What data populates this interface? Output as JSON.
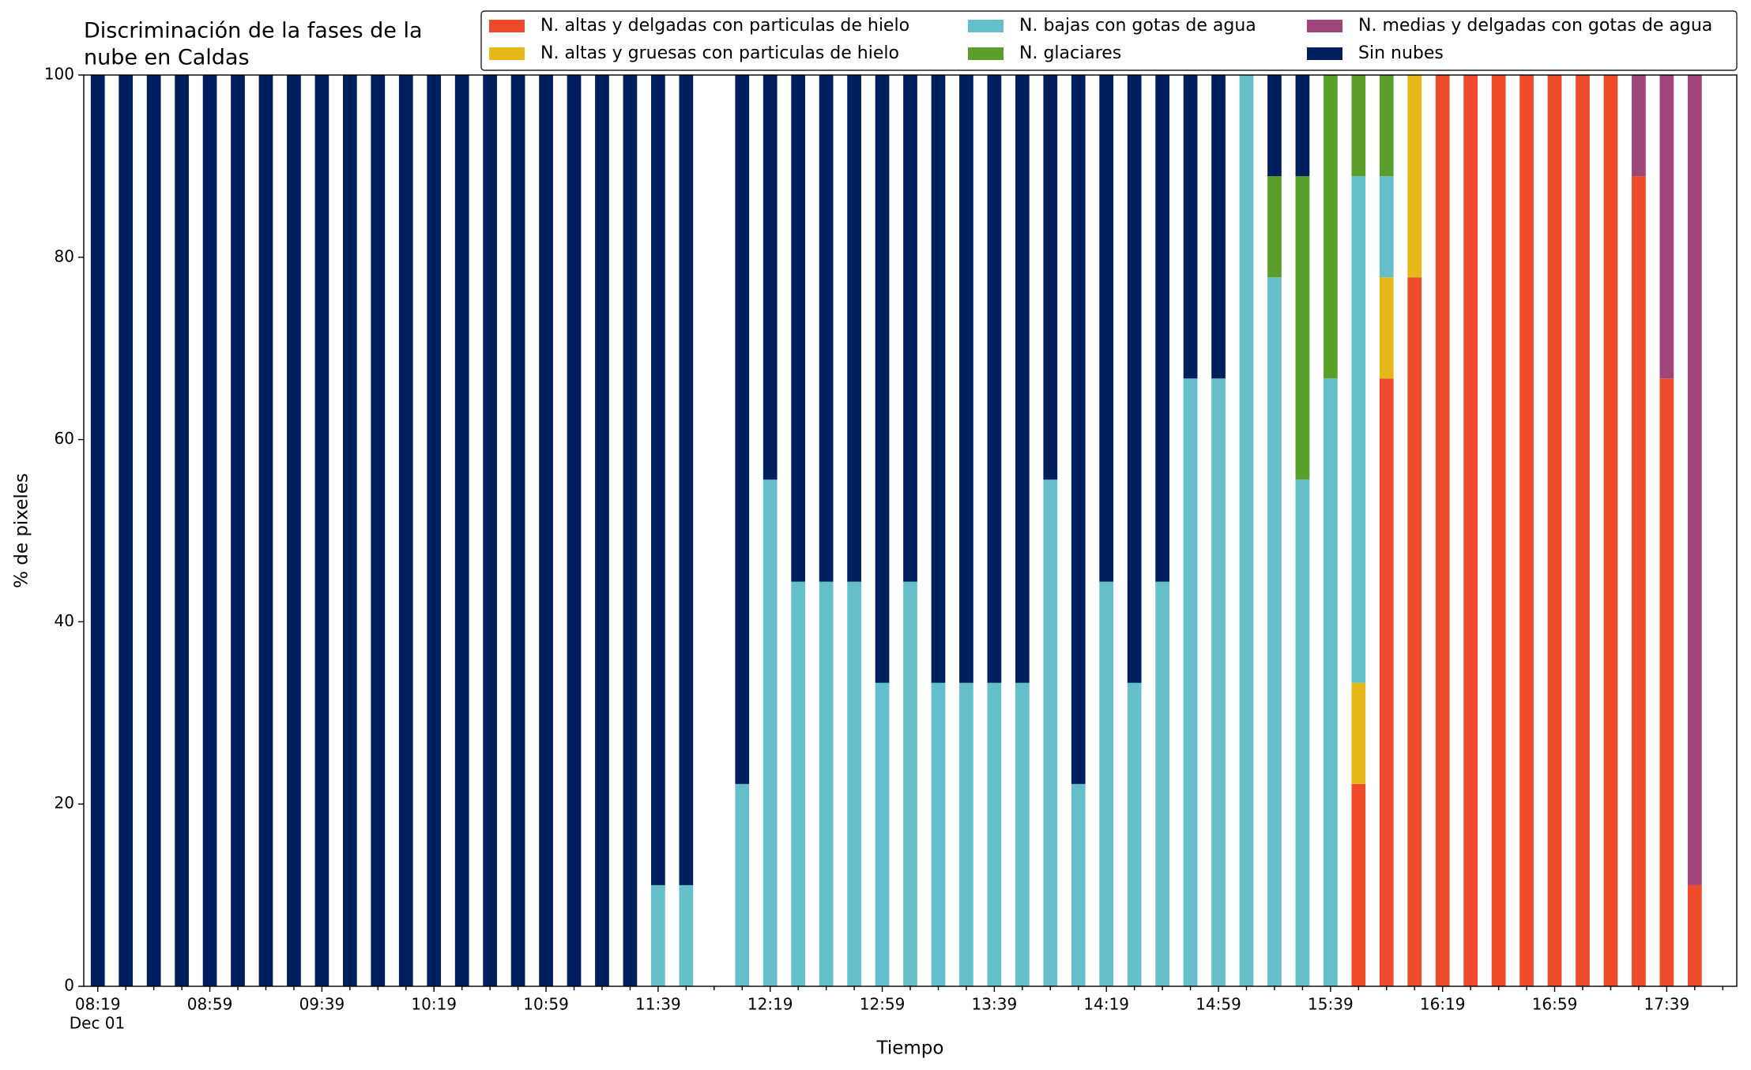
{
  "chart_data": {
    "type": "stacked_bar",
    "title_lines": [
      "Discriminación de la fases de la",
      "nube en Caldas"
    ],
    "xlabel": "Tiempo",
    "ylabel": "% de pixeles",
    "date_label": "Dec 01",
    "categories": [
      "08:19",
      null,
      null,
      null,
      "08:59",
      null,
      null,
      null,
      "09:39",
      null,
      null,
      null,
      "10:19",
      null,
      null,
      null,
      "10:59",
      null,
      null,
      null,
      "11:39",
      null,
      null,
      null,
      "12:19",
      null,
      null,
      null,
      "12:59",
      null,
      null,
      null,
      "13:39",
      null,
      null,
      null,
      "14:19",
      null,
      null,
      null,
      "14:59",
      null,
      null,
      null,
      "15:39",
      null,
      null,
      null,
      "16:19",
      null,
      null,
      null,
      "16:59",
      null,
      null,
      null,
      "17:39",
      null
    ],
    "ylim": [
      0,
      100
    ],
    "yticks": [
      0,
      20,
      40,
      60,
      80,
      100
    ],
    "legend": "upper right",
    "series": [
      {
        "name": "N. altas y delgadas con particulas de hielo",
        "color": "#ee4b2b",
        "values": [
          0,
          0,
          0,
          0,
          0,
          0,
          0,
          0,
          0,
          0,
          0,
          0,
          0,
          0,
          0,
          0,
          0,
          0,
          0,
          0,
          0,
          0,
          null,
          0,
          0,
          0,
          0,
          0,
          0,
          0,
          0,
          0,
          0,
          0,
          0,
          0,
          0,
          0,
          0,
          0,
          0,
          0,
          0,
          0,
          0,
          22.2,
          66.7,
          77.8,
          100,
          100,
          100,
          100,
          100,
          100,
          100,
          88.9,
          66.7,
          11.1
        ]
      },
      {
        "name": "N. altas y gruesas con particulas de hielo",
        "color": "#e6b817",
        "values": [
          0,
          0,
          0,
          0,
          0,
          0,
          0,
          0,
          0,
          0,
          0,
          0,
          0,
          0,
          0,
          0,
          0,
          0,
          0,
          0,
          0,
          0,
          null,
          0,
          0,
          0,
          0,
          0,
          0,
          0,
          0,
          0,
          0,
          0,
          0,
          0,
          0,
          0,
          0,
          0,
          0,
          0,
          0,
          0,
          0,
          11.1,
          11.1,
          22.2,
          0,
          0,
          0,
          0,
          0,
          0,
          0,
          0,
          0,
          0
        ]
      },
      {
        "name": "N. bajas con gotas de agua",
        "color": "#64bfcb",
        "values": [
          0,
          0,
          0,
          0,
          0,
          0,
          0,
          0,
          0,
          0,
          0,
          0,
          0,
          0,
          0,
          0,
          0,
          0,
          0,
          0,
          11.1,
          11.1,
          null,
          22.2,
          55.6,
          44.4,
          44.4,
          44.4,
          33.3,
          44.4,
          33.3,
          33.3,
          33.3,
          33.3,
          55.6,
          22.2,
          44.4,
          33.3,
          44.4,
          66.7,
          66.7,
          100,
          77.8,
          55.6,
          66.7,
          55.6,
          11.1,
          0,
          0,
          0,
          0,
          0,
          0,
          0,
          0,
          0,
          0,
          0
        ]
      },
      {
        "name": "N. glaciares",
        "color": "#5b9e2a",
        "values": [
          0,
          0,
          0,
          0,
          0,
          0,
          0,
          0,
          0,
          0,
          0,
          0,
          0,
          0,
          0,
          0,
          0,
          0,
          0,
          0,
          0,
          0,
          null,
          0,
          0,
          0,
          0,
          0,
          0,
          0,
          0,
          0,
          0,
          0,
          0,
          0,
          0,
          0,
          0,
          0,
          0,
          0,
          11.1,
          33.3,
          33.3,
          11.1,
          11.1,
          0,
          0,
          0,
          0,
          0,
          0,
          0,
          0,
          0,
          0,
          0
        ]
      },
      {
        "name": "N. medias y delgadas con gotas de agua",
        "color": "#a0457a",
        "values": [
          0,
          0,
          0,
          0,
          0,
          0,
          0,
          0,
          0,
          0,
          0,
          0,
          0,
          0,
          0,
          0,
          0,
          0,
          0,
          0,
          0,
          0,
          null,
          0,
          0,
          0,
          0,
          0,
          0,
          0,
          0,
          0,
          0,
          0,
          0,
          0,
          0,
          0,
          0,
          0,
          0,
          0,
          0,
          0,
          0,
          0,
          0,
          0,
          0,
          0,
          0,
          0,
          0,
          0,
          0,
          11.1,
          33.3,
          88.9
        ]
      },
      {
        "name": "Sin nubes",
        "color": "#001f5e",
        "values": [
          100,
          100,
          100,
          100,
          100,
          100,
          100,
          100,
          100,
          100,
          100,
          100,
          100,
          100,
          100,
          100,
          100,
          100,
          100,
          100,
          88.9,
          88.9,
          null,
          77.8,
          44.4,
          55.6,
          55.6,
          55.6,
          66.7,
          55.6,
          66.7,
          66.7,
          66.7,
          66.7,
          44.4,
          77.8,
          55.6,
          66.7,
          55.6,
          33.3,
          33.3,
          0,
          11.1,
          11.1,
          0,
          0,
          0,
          0,
          0,
          0,
          0,
          0,
          0,
          0,
          0,
          0,
          0,
          0
        ]
      }
    ]
  }
}
